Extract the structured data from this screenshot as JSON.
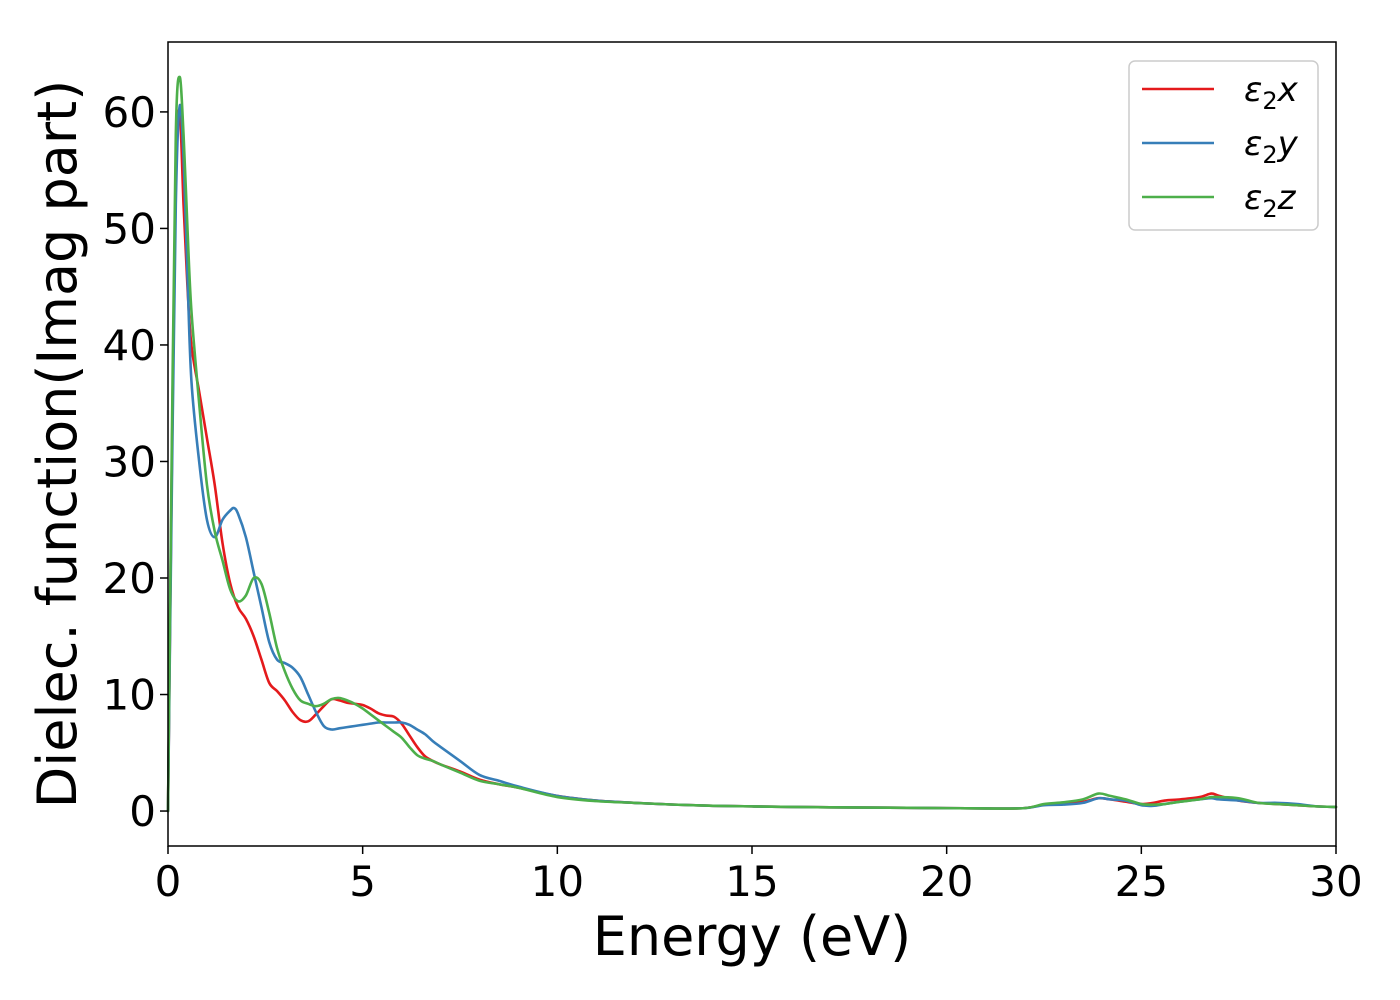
{
  "chart_data": {
    "type": "line",
    "xlabel": "Energy (eV)",
    "ylabel": "Dielec. function(Imag part)",
    "xlim": [
      0,
      30
    ],
    "ylim": [
      -3,
      66
    ],
    "xticks": [
      "0",
      "5",
      "10",
      "15",
      "20",
      "25",
      "30"
    ],
    "yticks": [
      "0",
      "10",
      "20",
      "30",
      "40",
      "50",
      "60"
    ],
    "grid": false,
    "legend_position": "top-right",
    "series": [
      {
        "name": "ε₂x",
        "legend_base": "ε",
        "legend_sub": "2",
        "legend_suffix": "x",
        "color": "#e41a1c",
        "x": [
          0,
          0.1,
          0.2,
          0.3,
          0.4,
          0.5,
          0.6,
          0.8,
          1.0,
          1.2,
          1.4,
          1.6,
          1.8,
          2.0,
          2.2,
          2.4,
          2.6,
          2.8,
          3.0,
          3.2,
          3.4,
          3.6,
          3.8,
          4.0,
          4.2,
          4.4,
          4.6,
          4.8,
          5.0,
          5.2,
          5.4,
          5.6,
          5.8,
          6.0,
          6.2,
          6.4,
          6.6,
          6.8,
          7.0,
          7.5,
          8.0,
          8.5,
          9.0,
          10.0,
          11.0,
          12.0,
          13.0,
          14.0,
          15.0,
          16.0,
          17.0,
          18.0,
          19.0,
          20.0,
          21.0,
          22.0,
          22.5,
          23.0,
          23.5,
          23.9,
          24.2,
          24.6,
          25.0,
          25.3,
          25.6,
          26.0,
          26.5,
          26.8,
          27.0,
          27.5,
          28.0,
          28.5,
          29.0,
          29.5,
          30.0
        ],
        "values": [
          0,
          30,
          55,
          60,
          52,
          45,
          40,
          36,
          32,
          28,
          23,
          19.5,
          17.5,
          16.5,
          15,
          13,
          11,
          10.3,
          9.5,
          8.5,
          7.8,
          7.7,
          8.3,
          9.0,
          9.6,
          9.5,
          9.3,
          9.2,
          9.1,
          8.8,
          8.4,
          8.2,
          8.1,
          7.5,
          6.5,
          5.5,
          4.7,
          4.3,
          4.0,
          3.4,
          2.7,
          2.3,
          2.0,
          1.3,
          0.9,
          0.7,
          0.55,
          0.45,
          0.4,
          0.35,
          0.32,
          0.3,
          0.28,
          0.25,
          0.22,
          0.25,
          0.55,
          0.7,
          0.8,
          1.1,
          1.0,
          0.8,
          0.6,
          0.7,
          0.9,
          1.0,
          1.2,
          1.5,
          1.3,
          0.9,
          0.7,
          0.6,
          0.5,
          0.4,
          0.35
        ]
      },
      {
        "name": "ε₂y",
        "legend_base": "ε",
        "legend_sub": "2",
        "legend_suffix": "y",
        "color": "#377eb8",
        "x": [
          0,
          0.1,
          0.2,
          0.3,
          0.4,
          0.5,
          0.6,
          0.8,
          1.0,
          1.2,
          1.4,
          1.6,
          1.7,
          1.8,
          2.0,
          2.2,
          2.4,
          2.6,
          2.8,
          3.0,
          3.2,
          3.4,
          3.6,
          3.8,
          4.0,
          4.2,
          4.4,
          4.6,
          4.8,
          5.0,
          5.2,
          5.4,
          5.6,
          5.8,
          6.0,
          6.2,
          6.4,
          6.6,
          6.8,
          7.0,
          7.5,
          8.0,
          8.5,
          9.0,
          10.0,
          11.0,
          12.0,
          13.0,
          14.0,
          15.0,
          16.0,
          17.0,
          18.0,
          19.0,
          20.0,
          21.0,
          22.0,
          22.5,
          23.0,
          23.5,
          23.9,
          24.2,
          24.6,
          25.0,
          25.3,
          25.6,
          26.0,
          26.5,
          26.8,
          27.0,
          27.5,
          28.0,
          28.5,
          29.0,
          29.5,
          30.0
        ],
        "values": [
          0,
          28,
          52,
          60.5,
          56,
          46,
          37,
          30,
          25,
          23.5,
          25,
          25.8,
          26.0,
          25.5,
          23.5,
          20.5,
          17.5,
          14.5,
          13,
          12.7,
          12.3,
          11.5,
          10,
          8.5,
          7.3,
          7.0,
          7.1,
          7.2,
          7.3,
          7.4,
          7.5,
          7.6,
          7.6,
          7.6,
          7.6,
          7.4,
          7.0,
          6.6,
          6.0,
          5.5,
          4.3,
          3.1,
          2.6,
          2.1,
          1.3,
          0.9,
          0.7,
          0.55,
          0.45,
          0.4,
          0.35,
          0.32,
          0.3,
          0.28,
          0.25,
          0.22,
          0.25,
          0.5,
          0.55,
          0.7,
          1.1,
          1.0,
          0.9,
          0.5,
          0.45,
          0.6,
          0.8,
          1.0,
          1.1,
          1.0,
          0.9,
          0.7,
          0.7,
          0.6,
          0.4,
          0.35
        ]
      },
      {
        "name": "ε₂z",
        "legend_base": "ε",
        "legend_sub": "2",
        "legend_suffix": "z",
        "color": "#4daf4a",
        "x": [
          0,
          0.1,
          0.2,
          0.3,
          0.4,
          0.5,
          0.6,
          0.8,
          1.0,
          1.2,
          1.4,
          1.6,
          1.8,
          2.0,
          2.2,
          2.4,
          2.6,
          2.8,
          3.0,
          3.2,
          3.4,
          3.6,
          3.8,
          4.0,
          4.2,
          4.4,
          4.6,
          4.8,
          5.0,
          5.2,
          5.4,
          5.6,
          5.8,
          6.0,
          6.2,
          6.4,
          6.6,
          6.8,
          7.0,
          7.5,
          8.0,
          8.5,
          9.0,
          10.0,
          11.0,
          12.0,
          13.0,
          14.0,
          15.0,
          16.0,
          17.0,
          18.0,
          19.0,
          20.0,
          21.0,
          22.0,
          22.5,
          23.0,
          23.5,
          23.9,
          24.2,
          24.6,
          25.0,
          25.3,
          25.6,
          26.0,
          26.5,
          26.8,
          27.0,
          27.5,
          28.0,
          28.5,
          29.0,
          29.5,
          30.0
        ],
        "values": [
          0,
          32,
          58,
          63,
          58,
          50,
          43,
          35,
          28,
          24,
          21.5,
          19,
          18,
          18.5,
          20,
          19.5,
          17,
          14,
          12,
          10.5,
          9.5,
          9.2,
          9.0,
          9.2,
          9.6,
          9.7,
          9.5,
          9.2,
          8.8,
          8.3,
          7.8,
          7.3,
          6.8,
          6.3,
          5.5,
          4.8,
          4.5,
          4.3,
          4.0,
          3.3,
          2.6,
          2.3,
          2.0,
          1.2,
          0.85,
          0.7,
          0.55,
          0.45,
          0.4,
          0.35,
          0.32,
          0.3,
          0.28,
          0.25,
          0.22,
          0.25,
          0.6,
          0.75,
          1.0,
          1.5,
          1.3,
          1.0,
          0.6,
          0.55,
          0.6,
          0.8,
          1.0,
          1.2,
          1.2,
          1.1,
          0.7,
          0.6,
          0.5,
          0.4,
          0.35
        ]
      }
    ]
  }
}
